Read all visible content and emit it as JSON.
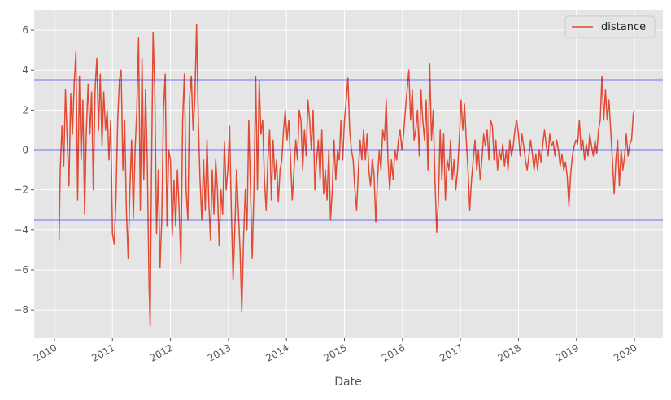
{
  "chart_data": {
    "type": "line",
    "x_label": "Date",
    "x": [
      2010.08,
      2010.1,
      2010.13,
      2010.16,
      2010.19,
      2010.22,
      2010.25,
      2010.28,
      2010.31,
      2010.34,
      2010.37,
      2010.4,
      2010.43,
      2010.46,
      2010.49,
      2010.52,
      2010.55,
      2010.58,
      2010.61,
      2010.64,
      2010.67,
      2010.7,
      2010.73,
      2010.76,
      2010.79,
      2010.82,
      2010.85,
      2010.88,
      2010.91,
      2010.94,
      2010.97,
      2011.0,
      2011.03,
      2011.06,
      2011.09,
      2011.12,
      2011.15,
      2011.18,
      2011.21,
      2011.24,
      2011.27,
      2011.3,
      2011.33,
      2011.36,
      2011.39,
      2011.42,
      2011.45,
      2011.48,
      2011.51,
      2011.54,
      2011.57,
      2011.6,
      2011.63,
      2011.65,
      2011.67,
      2011.7,
      2011.73,
      2011.76,
      2011.79,
      2011.82,
      2011.85,
      2011.88,
      2011.91,
      2011.94,
      2011.97,
      2012.0,
      2012.03,
      2012.06,
      2012.09,
      2012.12,
      2012.15,
      2012.18,
      2012.21,
      2012.24,
      2012.27,
      2012.3,
      2012.33,
      2012.36,
      2012.39,
      2012.42,
      2012.45,
      2012.48,
      2012.51,
      2012.54,
      2012.57,
      2012.6,
      2012.63,
      2012.66,
      2012.69,
      2012.72,
      2012.75,
      2012.78,
      2012.81,
      2012.84,
      2012.87,
      2012.9,
      2012.93,
      2012.96,
      2012.99,
      2013.02,
      2013.05,
      2013.08,
      2013.11,
      2013.14,
      2013.17,
      2013.2,
      2013.23,
      2013.26,
      2013.29,
      2013.32,
      2013.35,
      2013.38,
      2013.41,
      2013.44,
      2013.47,
      2013.5,
      2013.53,
      2013.56,
      2013.59,
      2013.62,
      2013.65,
      2013.68,
      2013.71,
      2013.74,
      2013.77,
      2013.8,
      2013.83,
      2013.86,
      2013.89,
      2013.92,
      2013.95,
      2013.98,
      2014.01,
      2014.04,
      2014.07,
      2014.1,
      2014.13,
      2014.16,
      2014.19,
      2014.22,
      2014.25,
      2014.28,
      2014.31,
      2014.34,
      2014.37,
      2014.4,
      2014.43,
      2014.46,
      2014.49,
      2014.52,
      2014.55,
      2014.58,
      2014.61,
      2014.64,
      2014.67,
      2014.7,
      2014.73,
      2014.76,
      2014.79,
      2014.82,
      2014.85,
      2014.88,
      2014.91,
      2014.94,
      2014.97,
      2015.0,
      2015.03,
      2015.06,
      2015.09,
      2015.12,
      2015.15,
      2015.18,
      2015.21,
      2015.24,
      2015.27,
      2015.3,
      2015.33,
      2015.36,
      2015.39,
      2015.42,
      2015.45,
      2015.48,
      2015.51,
      2015.54,
      2015.57,
      2015.6,
      2015.63,
      2015.66,
      2015.69,
      2015.72,
      2015.75,
      2015.78,
      2015.81,
      2015.84,
      2015.87,
      2015.9,
      2015.93,
      2015.96,
      2015.99,
      2016.02,
      2016.05,
      2016.08,
      2016.11,
      2016.14,
      2016.17,
      2016.2,
      2016.23,
      2016.26,
      2016.29,
      2016.32,
      2016.35,
      2016.38,
      2016.41,
      2016.44,
      2016.47,
      2016.5,
      2016.53,
      2016.56,
      2016.59,
      2016.62,
      2016.65,
      2016.68,
      2016.71,
      2016.74,
      2016.77,
      2016.8,
      2016.83,
      2016.86,
      2016.89,
      2016.92,
      2016.95,
      2016.98,
      2017.01,
      2017.04,
      2017.07,
      2017.1,
      2017.13,
      2017.16,
      2017.19,
      2017.22,
      2017.25,
      2017.28,
      2017.31,
      2017.34,
      2017.37,
      2017.4,
      2017.43,
      2017.46,
      2017.49,
      2017.52,
      2017.55,
      2017.58,
      2017.61,
      2017.64,
      2017.67,
      2017.7,
      2017.73,
      2017.76,
      2017.79,
      2017.82,
      2017.85,
      2017.88,
      2017.91,
      2017.94,
      2017.97,
      2018.0,
      2018.03,
      2018.06,
      2018.09,
      2018.12,
      2018.15,
      2018.18,
      2018.21,
      2018.24,
      2018.27,
      2018.3,
      2018.33,
      2018.36,
      2018.39,
      2018.42,
      2018.45,
      2018.48,
      2018.51,
      2018.54,
      2018.57,
      2018.6,
      2018.63,
      2018.66,
      2018.69,
      2018.72,
      2018.75,
      2018.78,
      2018.81,
      2018.84,
      2018.87,
      2018.9,
      2018.93,
      2018.96,
      2018.99,
      2019.02,
      2019.05,
      2019.08,
      2019.11,
      2019.14,
      2019.17,
      2019.2,
      2019.23,
      2019.26,
      2019.29,
      2019.32,
      2019.35,
      2019.38,
      2019.41,
      2019.44,
      2019.47,
      2019.5,
      2019.53,
      2019.56,
      2019.59,
      2019.62,
      2019.65,
      2019.68,
      2019.71,
      2019.74,
      2019.77,
      2019.8,
      2019.83,
      2019.86,
      2019.89,
      2019.92,
      2019.95,
      2019.98,
      2020.0
    ],
    "series": [
      {
        "name": "distance",
        "color": "#E24A33",
        "values": [
          -4.5,
          -1,
          1.2,
          -0.8,
          3,
          0.5,
          -1.8,
          2.8,
          0.8,
          3.3,
          4.9,
          -2.5,
          3.7,
          -0.5,
          2.5,
          -3.2,
          1.0,
          3.3,
          0.8,
          2.9,
          -2.0,
          3.0,
          4.6,
          1.0,
          3.8,
          0.2,
          2.9,
          1.0,
          2.0,
          -0.5,
          1.5,
          -4.2,
          -4.7,
          -2.5,
          1.5,
          3.5,
          4.0,
          -1.0,
          1.5,
          -3.0,
          -5.4,
          -2.0,
          0.5,
          -3.4,
          0.0,
          2.0,
          5.6,
          -3.0,
          4.6,
          -1.5,
          3.0,
          -0.5,
          -6.7,
          -8.8,
          -2.0,
          5.9,
          3.0,
          -4.2,
          -1.0,
          -5.9,
          -3.5,
          2.0,
          3.8,
          -3.8,
          0.0,
          -0.5,
          -4.3,
          -1.5,
          -3.8,
          -1.0,
          -3.0,
          -5.7,
          1.5,
          3.8,
          -2.0,
          -3.5,
          2.6,
          3.7,
          1.0,
          2.5,
          6.3,
          1.5,
          -1.5,
          -3.5,
          -0.5,
          -3.0,
          0.5,
          -2.5,
          -4.5,
          -1.0,
          -3.2,
          -0.5,
          -2.0,
          -4.8,
          -2.0,
          -3.2,
          0.4,
          -2.0,
          -1.0,
          1.2,
          -3.0,
          -6.5,
          -4.0,
          -1.0,
          -3.0,
          -5.0,
          -8.1,
          -4.5,
          -2.0,
          -4.0,
          1.5,
          -2.0,
          -5.4,
          -2.0,
          3.7,
          -2.0,
          3.5,
          0.8,
          1.5,
          -1.5,
          -3.0,
          -0.5,
          1.0,
          -2.5,
          0.5,
          -1.5,
          -0.5,
          -2.6,
          -1.0,
          -0.5,
          1.0,
          2.0,
          0.5,
          1.5,
          -0.5,
          -2.5,
          -1.0,
          0.5,
          -0.5,
          2.0,
          1.5,
          -1.0,
          1.0,
          -0.3,
          2.5,
          1.5,
          0.0,
          2.0,
          -2.0,
          -0.5,
          0.5,
          -1.5,
          1.0,
          -2.2,
          -1.0,
          -2.5,
          0.0,
          -3.5,
          -2.0,
          0.5,
          -1.5,
          0.0,
          -0.5,
          1.5,
          -0.5,
          1.5,
          2.5,
          3.6,
          1.0,
          0.0,
          -0.5,
          -2.0,
          -3.0,
          -1.0,
          0.5,
          -0.5,
          1.0,
          -0.5,
          0.8,
          -1.0,
          -1.8,
          -0.5,
          -1.2,
          -3.6,
          -1.5,
          0.0,
          -1.0,
          1.0,
          0.5,
          2.5,
          -0.5,
          -2.0,
          -0.5,
          -1.5,
          0.0,
          -0.5,
          0.5,
          1.0,
          0.0,
          0.8,
          2.0,
          3.0,
          4.0,
          1.5,
          3.0,
          0.5,
          1.0,
          2.0,
          -0.3,
          3.0,
          1.5,
          0.5,
          2.5,
          -1.0,
          4.3,
          0.5,
          2.0,
          -1.5,
          -4.1,
          -2.5,
          1.0,
          -1.5,
          0.8,
          -2.5,
          -0.5,
          -1.0,
          0.5,
          -1.5,
          -0.5,
          -2.0,
          -1.0,
          0.5,
          2.5,
          1.0,
          2.3,
          0.5,
          -1.0,
          -3.0,
          -1.5,
          -0.5,
          0.5,
          -1.0,
          0.0,
          -1.5,
          -0.5,
          0.8,
          0.2,
          1.0,
          -0.5,
          1.5,
          1.2,
          -0.5,
          0.5,
          -1.0,
          0.0,
          -0.5,
          0.3,
          -0.8,
          0.0,
          -1.0,
          0.5,
          -0.3,
          0.2,
          1.0,
          1.5,
          0.8,
          -0.3,
          0.8,
          0.2,
          -0.5,
          -1.0,
          -0.3,
          0.5,
          -0.2,
          -1.0,
          -0.2,
          -1.0,
          0.0,
          -0.6,
          0.3,
          1.0,
          0.2,
          -0.3,
          0.8,
          0.2,
          0.4,
          -0.3,
          0.5,
          0.0,
          -0.8,
          -0.2,
          -1.0,
          -0.6,
          -1.3,
          -2.8,
          -1.2,
          -0.3,
          0.2,
          0.5,
          0.3,
          1.5,
          0.0,
          0.5,
          -0.5,
          0.3,
          -0.3,
          0.8,
          0.2,
          -0.3,
          0.5,
          -0.2,
          1.0,
          1.5,
          3.7,
          1.5,
          3.0,
          1.5,
          2.5,
          1.0,
          -0.5,
          -2.2,
          -0.5,
          0.5,
          -1.8,
          0.0,
          -1.0,
          -0.3,
          0.8,
          -0.3,
          0.3,
          0.5,
          1.8,
          2.0
        ]
      }
    ],
    "hlines": {
      "values": [
        3.5,
        0,
        -3.5
      ],
      "color": "#0000FF"
    },
    "xlim": [
      2009.65,
      2020.49
    ],
    "xticks": [
      2010,
      2011,
      2012,
      2013,
      2014,
      2015,
      2016,
      2017,
      2018,
      2019,
      2020
    ],
    "ylim": [
      -9.42,
      7.02
    ],
    "yticks": [
      {
        "value": -8,
        "label": "−8"
      },
      {
        "value": -6,
        "label": "−6"
      },
      {
        "value": -4,
        "label": "−4"
      },
      {
        "value": -2,
        "label": "−2"
      },
      0,
      2,
      4,
      6
    ],
    "grid": true,
    "legend": "upper right"
  }
}
